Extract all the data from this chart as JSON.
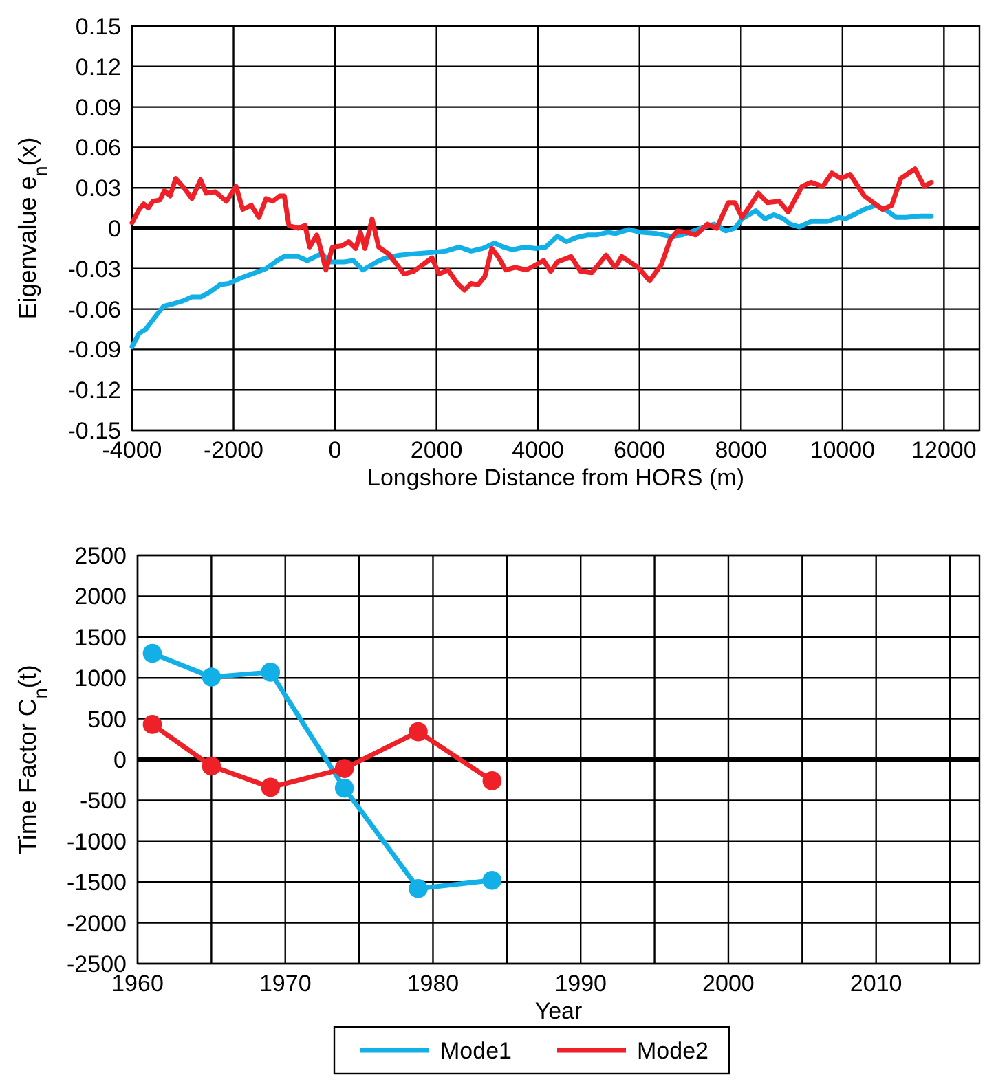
{
  "chart_data": [
    {
      "type": "line",
      "xlabel": "Longshore Distance from HORS (m)",
      "ylabel": "Eigenvalue e$_{n}$(x)",
      "xlim": [
        -4000,
        12700
      ],
      "ylim": [
        -0.15,
        0.15
      ],
      "xticks": [
        -4000,
        -2000,
        0,
        2000,
        4000,
        6000,
        8000,
        10000,
        12000
      ],
      "yticks": [
        -0.15,
        -0.12,
        -0.09,
        -0.06,
        -0.03,
        0,
        0.03,
        0.06,
        0.09,
        0.12,
        0.15
      ],
      "grid": true,
      "marker": "none",
      "line_style": "solid",
      "legend": "bottom",
      "ref_lines": [
        {
          "axis": "y",
          "value": 0,
          "color": "#000000"
        }
      ],
      "series": [
        {
          "name": "Mode1",
          "color": "#13b0e8",
          "x": [
            -4000,
            -3860,
            -3730,
            -3550,
            -3380,
            -3180,
            -3000,
            -2820,
            -2640,
            -2450,
            -2270,
            -2090,
            -1860,
            -1640,
            -1360,
            -1140,
            -1000,
            -730,
            -550,
            -270,
            -90,
            180,
            360,
            550,
            820,
            1000,
            1270,
            1550,
            1910,
            2180,
            2450,
            2680,
            2910,
            3140,
            3320,
            3500,
            3730,
            3970,
            4150,
            4380,
            4560,
            4750,
            4970,
            5150,
            5380,
            5520,
            5790,
            6020,
            6340,
            6610,
            6840,
            7060,
            7290,
            7470,
            7700,
            7880,
            8020,
            8290,
            8470,
            8650,
            8840,
            8970,
            9150,
            9380,
            9700,
            9930,
            10060,
            10430,
            10650,
            10840,
            11060,
            11250,
            11520,
            11750
          ],
          "values": [
            -0.088,
            -0.078,
            -0.075,
            -0.066,
            -0.058,
            -0.056,
            -0.054,
            -0.051,
            -0.051,
            -0.047,
            -0.042,
            -0.041,
            -0.037,
            -0.034,
            -0.03,
            -0.024,
            -0.021,
            -0.021,
            -0.024,
            -0.019,
            -0.025,
            -0.025,
            -0.024,
            -0.031,
            -0.025,
            -0.022,
            -0.02,
            -0.019,
            -0.018,
            -0.017,
            -0.014,
            -0.017,
            -0.015,
            -0.011,
            -0.014,
            -0.016,
            -0.014,
            -0.015,
            -0.014,
            -0.006,
            -0.01,
            -0.007,
            -0.005,
            -0.005,
            -0.003,
            -0.004,
            -0.001,
            -0.003,
            -0.004,
            -0.006,
            -0.005,
            -0.002,
            0.001,
            0.003,
            -0.002,
            0,
            0.007,
            0.013,
            0.007,
            0.01,
            0.007,
            0.003,
            0.001,
            0.005,
            0.005,
            0.008,
            0.007,
            0.014,
            0.017,
            0.014,
            0.008,
            0.008,
            0.009,
            0.009
          ]
        },
        {
          "name": "Mode2",
          "color": "#ee2128",
          "x": [
            -4000,
            -3860,
            -3770,
            -3680,
            -3590,
            -3450,
            -3360,
            -3250,
            -3140,
            -3000,
            -2820,
            -2650,
            -2540,
            -2360,
            -2140,
            -1950,
            -1820,
            -1650,
            -1500,
            -1360,
            -1230,
            -1090,
            -1000,
            -910,
            -730,
            -590,
            -500,
            -360,
            -270,
            -180,
            -50,
            140,
            270,
            410,
            500,
            590,
            730,
            860,
            1050,
            1180,
            1360,
            1550,
            1730,
            1910,
            2050,
            2230,
            2410,
            2550,
            2680,
            2820,
            2950,
            3090,
            3230,
            3360,
            3550,
            3770,
            4110,
            4250,
            4380,
            4650,
            4840,
            5060,
            5340,
            5520,
            5650,
            5970,
            6200,
            6430,
            6610,
            6750,
            6930,
            7110,
            7340,
            7520,
            7750,
            7880,
            8020,
            8150,
            8340,
            8520,
            8750,
            8930,
            9200,
            9380,
            9610,
            9790,
            9970,
            10150,
            10430,
            10610,
            10790,
            10970,
            11150,
            11430,
            11610,
            11750
          ],
          "values": [
            0.004,
            0.014,
            0.018,
            0.015,
            0.02,
            0.021,
            0.028,
            0.024,
            0.037,
            0.031,
            0.022,
            0.036,
            0.026,
            0.027,
            0.02,
            0.031,
            0.014,
            0.017,
            0.008,
            0.022,
            0.02,
            0.024,
            0.024,
            0.002,
            0,
            0.002,
            -0.014,
            -0.005,
            -0.017,
            -0.031,
            -0.014,
            -0.013,
            -0.01,
            -0.015,
            -0.003,
            -0.015,
            0.007,
            -0.014,
            -0.019,
            -0.025,
            -0.034,
            -0.032,
            -0.027,
            -0.022,
            -0.034,
            -0.031,
            -0.041,
            -0.046,
            -0.041,
            -0.042,
            -0.036,
            -0.015,
            -0.022,
            -0.031,
            -0.029,
            -0.031,
            -0.024,
            -0.032,
            -0.025,
            -0.021,
            -0.032,
            -0.033,
            -0.02,
            -0.029,
            -0.021,
            -0.029,
            -0.039,
            -0.027,
            -0.008,
            -0.002,
            -0.003,
            -0.005,
            0.003,
            0,
            0.019,
            0.019,
            0.008,
            0.015,
            0.026,
            0.019,
            0.02,
            0.012,
            0.031,
            0.034,
            0.031,
            0.041,
            0.037,
            0.04,
            0.024,
            0.019,
            0.014,
            0.017,
            0.037,
            0.044,
            0.031,
            0.034
          ]
        }
      ]
    },
    {
      "type": "line",
      "xlabel": "Year",
      "ylabel": "Time Factor C$_{n}$(t)",
      "xlim": [
        1960,
        2017
      ],
      "ylim": [
        -2500,
        2500
      ],
      "xticks": [
        1960,
        {
          "value": 1965,
          "label": null
        },
        1970,
        {
          "value": 1975,
          "label": null
        },
        1980,
        {
          "value": 1985,
          "label": null
        },
        1990,
        {
          "value": 1995,
          "label": null
        },
        2000,
        {
          "value": 2005,
          "label": null
        },
        2010,
        {
          "value": 2015,
          "label": null
        }
      ],
      "yticks": [
        -2500,
        -2000,
        -1500,
        -1000,
        -500,
        0,
        500,
        1000,
        1500,
        2000,
        2500
      ],
      "grid": true,
      "marker": "circle",
      "line_style": "solid",
      "legend": "bottom",
      "ref_lines": [
        {
          "axis": "y",
          "value": 0,
          "color": "#000000"
        }
      ],
      "series": [
        {
          "name": "Mode1",
          "color": "#13b0e8",
          "x": [
            1961,
            1965,
            1969,
            1974,
            1979,
            1984
          ],
          "values": [
            1300,
            1010,
            1070,
            -350,
            -1580,
            -1480
          ]
        },
        {
          "name": "Mode2",
          "color": "#ee2128",
          "x": [
            1961,
            1965,
            1969,
            1974,
            1979,
            1984
          ],
          "values": [
            430,
            -80,
            -340,
            -110,
            340,
            -260
          ]
        }
      ]
    }
  ]
}
